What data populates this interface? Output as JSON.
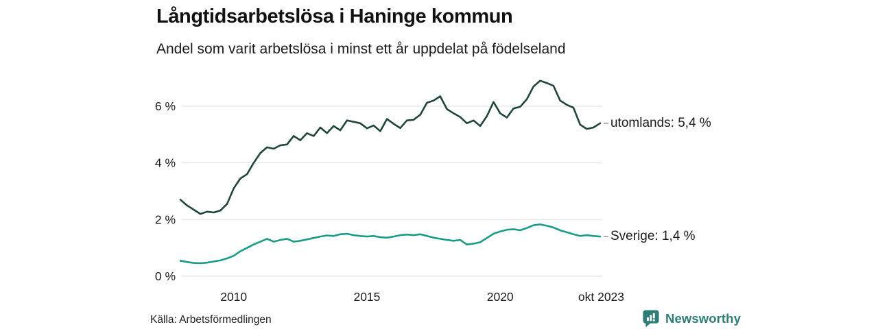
{
  "header": {
    "title": "Långtidsarbetslösa i Haninge kommun",
    "subtitle": "Andel som varit arbetslösa i minst ett år uppdelat på födelseland"
  },
  "footer": {
    "source": "Källa: Arbetsförmedlingen",
    "brand": "Newsworthy"
  },
  "colors": {
    "utomlands_line": "#20453a",
    "sverige_line": "#189b87",
    "grid": "#e3e3e3",
    "end_tick": "#999999",
    "text": "#1a1a1a",
    "brand": "#2d7e76"
  },
  "chart_data": {
    "type": "line",
    "title": "Långtidsarbetslösa i Haninge kommun",
    "subtitle": "Andel som varit arbetslösa i minst ett år uppdelat på födelseland",
    "xlabel": "",
    "ylabel": "",
    "x_unit": "year (decimal, monthly data shown quarterly)",
    "ylim": [
      0,
      7
    ],
    "x_range": [
      2008.0,
      2023.83
    ],
    "grid": "horizontal",
    "legend_position": "end-of-line labels, right side",
    "yticks": [
      {
        "value": 0,
        "label": "0 %"
      },
      {
        "value": 2,
        "label": "2 %"
      },
      {
        "value": 4,
        "label": "4 %"
      },
      {
        "value": 6,
        "label": "6 %"
      }
    ],
    "xticks": [
      {
        "value": 2010,
        "label": "2010"
      },
      {
        "value": 2015,
        "label": "2015"
      },
      {
        "value": 2020,
        "label": "2020"
      },
      {
        "value": 2023.79,
        "label": "okt 2023"
      }
    ],
    "x_start": 2008.0,
    "x_step": 0.25,
    "series": [
      {
        "name": "utomlands",
        "end_label": "utomlands: 5,4 %",
        "end_value": 5.4,
        "color_key": "utomlands_line",
        "values": [
          2.7,
          2.5,
          2.35,
          2.2,
          2.28,
          2.25,
          2.32,
          2.55,
          3.1,
          3.45,
          3.6,
          4.0,
          4.35,
          4.55,
          4.5,
          4.62,
          4.65,
          4.95,
          4.8,
          5.05,
          4.95,
          5.25,
          5.05,
          5.3,
          5.15,
          5.5,
          5.45,
          5.4,
          5.22,
          5.32,
          5.12,
          5.55,
          5.38,
          5.23,
          5.5,
          5.52,
          5.7,
          6.12,
          6.2,
          6.35,
          5.9,
          5.75,
          5.62,
          5.4,
          5.5,
          5.3,
          5.65,
          6.15,
          5.75,
          5.6,
          5.92,
          5.98,
          6.25,
          6.7,
          6.9,
          6.82,
          6.72,
          6.2,
          6.05,
          5.95,
          5.35,
          5.2,
          5.25,
          5.4
        ]
      },
      {
        "name": "Sverige",
        "end_label": "Sverige: 1,4 %",
        "end_value": 1.4,
        "color_key": "sverige_line",
        "values": [
          0.55,
          0.5,
          0.47,
          0.46,
          0.48,
          0.52,
          0.56,
          0.63,
          0.72,
          0.88,
          1.0,
          1.12,
          1.22,
          1.32,
          1.22,
          1.28,
          1.32,
          1.22,
          1.25,
          1.3,
          1.35,
          1.4,
          1.44,
          1.42,
          1.48,
          1.5,
          1.45,
          1.42,
          1.4,
          1.42,
          1.38,
          1.36,
          1.4,
          1.45,
          1.47,
          1.45,
          1.48,
          1.42,
          1.36,
          1.32,
          1.28,
          1.25,
          1.28,
          1.12,
          1.15,
          1.2,
          1.35,
          1.5,
          1.58,
          1.64,
          1.66,
          1.62,
          1.7,
          1.8,
          1.83,
          1.78,
          1.72,
          1.62,
          1.55,
          1.48,
          1.42,
          1.45,
          1.42,
          1.4
        ]
      }
    ]
  }
}
